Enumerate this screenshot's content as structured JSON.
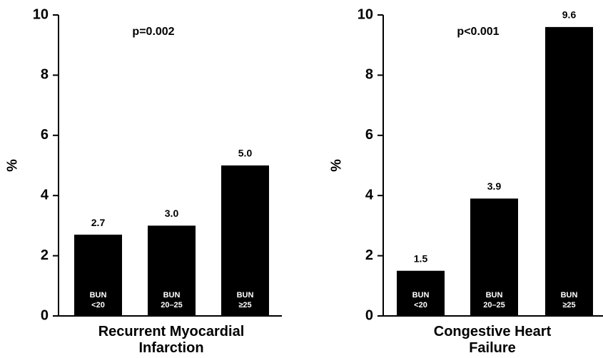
{
  "chart_data": [
    {
      "type": "bar",
      "x_label": "Recurrent Myocardial Infarction",
      "y_label": "%",
      "annotation": "p=0.002",
      "categories": [
        "BUN <20",
        "BUN 20–25",
        "BUN ≥25"
      ],
      "values": [
        2.7,
        3.0,
        5.0
      ],
      "value_labels": [
        "2.7",
        "3.0",
        "5.0"
      ],
      "color": "#000000",
      "ylim": [
        0,
        10
      ],
      "yticks": [
        0,
        2,
        4,
        6,
        8,
        10
      ]
    },
    {
      "type": "bar",
      "x_label": "Congestive Heart Failure",
      "y_label": "%",
      "annotation": "p<0.001",
      "categories": [
        "BUN <20",
        "BUN 20–25",
        "BUN ≥25"
      ],
      "values": [
        1.5,
        3.9,
        9.6
      ],
      "value_labels": [
        "1.5",
        "3.9",
        "9.6"
      ],
      "color": "#000000",
      "ylim": [
        0,
        10
      ],
      "yticks": [
        0,
        2,
        4,
        6,
        8,
        10
      ]
    }
  ]
}
